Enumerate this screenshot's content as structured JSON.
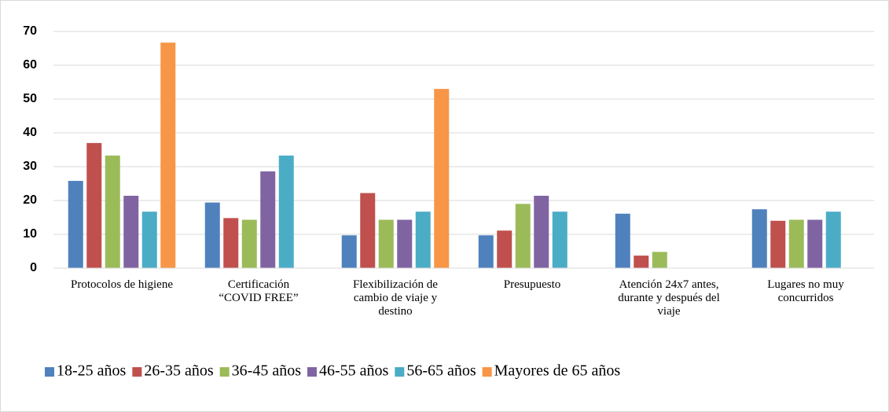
{
  "chart_data": {
    "type": "bar",
    "categories": [
      "Protocolos de higiene",
      "Certificación “COVID FREE”",
      "Flexibilización de cambio de viaje y destino",
      "Presupuesto",
      "Atención 24x7 antes, durante y después del viaje",
      "Lugares no muy concurridos"
    ],
    "series": [
      {
        "name": "18-25 años",
        "color": "#4f81bd",
        "values": [
          25.8,
          19.4,
          9.7,
          9.7,
          16.1,
          17.4
        ]
      },
      {
        "name": "26-35 años",
        "color": "#c0504d",
        "values": [
          37,
          14.8,
          22.2,
          11.1,
          3.7,
          14
        ]
      },
      {
        "name": "36-45 años",
        "color": "#9bbb59",
        "values": [
          33.3,
          14.3,
          14.3,
          19,
          4.8,
          14.3
        ]
      },
      {
        "name": "46-55 años",
        "color": "#8064a2",
        "values": [
          21.4,
          28.6,
          14.3,
          21.4,
          0,
          14.3
        ]
      },
      {
        "name": "56-65 años",
        "color": "#4bacc6",
        "values": [
          16.7,
          33.3,
          16.7,
          16.7,
          0,
          16.7
        ]
      },
      {
        "name": "Mayores de 65 años",
        "color": "#f79646",
        "values": [
          66.7,
          0,
          53,
          0,
          0,
          0
        ]
      }
    ],
    "ylim": [
      0,
      70
    ],
    "yticks": [
      0,
      10,
      20,
      30,
      40,
      50,
      60,
      70
    ],
    "grid": true,
    "legend": "bottom"
  }
}
